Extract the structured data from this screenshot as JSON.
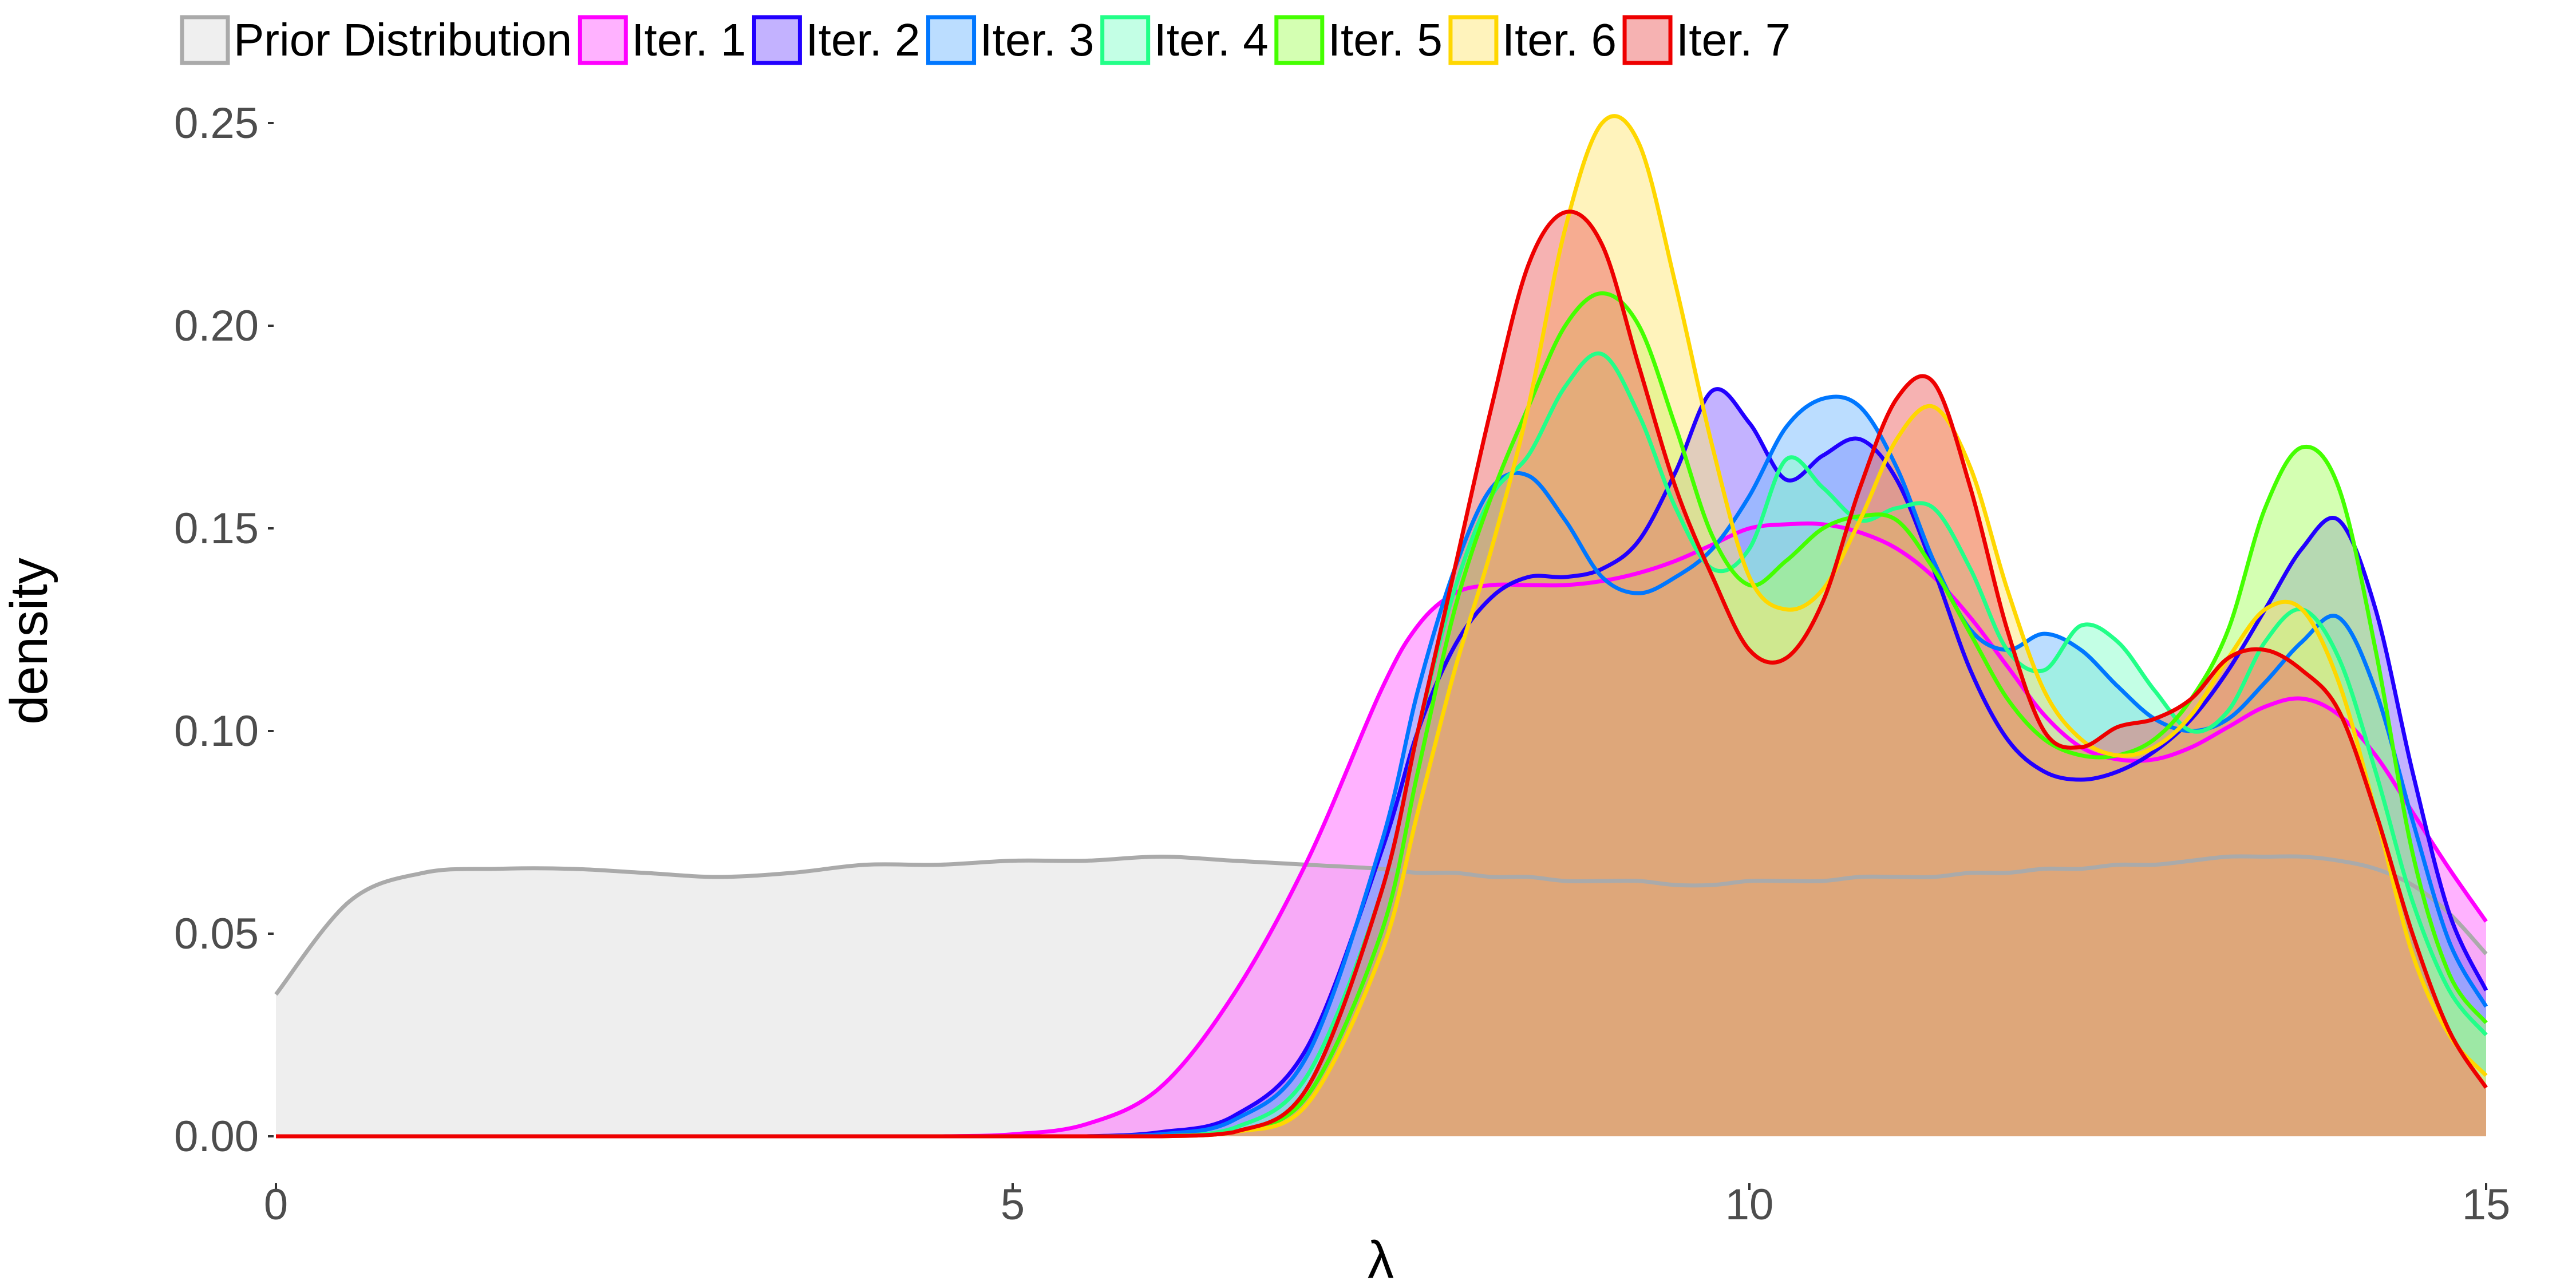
{
  "chart_data": {
    "type": "area",
    "title": "",
    "xlabel": "λ",
    "ylabel": "density",
    "xlim": [
      0,
      15
    ],
    "ylim": [
      0,
      0.25
    ],
    "x_ticks": [
      0,
      5,
      10,
      15
    ],
    "x_tick_labels": [
      "0",
      "5",
      "10",
      "15"
    ],
    "y_ticks": [
      0,
      0.05,
      0.1,
      0.15,
      0.2,
      0.25
    ],
    "y_tick_labels": [
      "0.00",
      "0.05",
      "0.10",
      "0.15",
      "0.20",
      "0.25"
    ],
    "grid": false,
    "legend_position": "top",
    "x": [
      0,
      0.5,
      1,
      1.5,
      2,
      2.5,
      3,
      3.5,
      4,
      4.5,
      5,
      5.5,
      6,
      6.5,
      7,
      7.5,
      7.75,
      8,
      8.25,
      8.5,
      8.75,
      9,
      9.25,
      9.5,
      9.75,
      10,
      10.25,
      10.5,
      10.75,
      11,
      11.25,
      11.5,
      11.75,
      12,
      12.25,
      12.5,
      12.75,
      13,
      13.25,
      13.5,
      13.75,
      14,
      14.25,
      14.5,
      14.75,
      15
    ],
    "series": [
      {
        "name": "Prior Distribution",
        "line_color": "#AAAAAA",
        "fill_color": "#E0E0E0",
        "values": [
          0.035,
          0.058,
          0.065,
          0.066,
          0.066,
          0.065,
          0.064,
          0.065,
          0.067,
          0.067,
          0.068,
          0.068,
          0.069,
          0.068,
          0.067,
          0.066,
          0.065,
          0.065,
          0.064,
          0.064,
          0.063,
          0.063,
          0.063,
          0.062,
          0.062,
          0.063,
          0.063,
          0.063,
          0.064,
          0.064,
          0.064,
          0.065,
          0.065,
          0.066,
          0.066,
          0.067,
          0.067,
          0.068,
          0.069,
          0.069,
          0.069,
          0.068,
          0.066,
          0.062,
          0.055,
          0.045
        ]
      },
      {
        "name": "Iter. 1",
        "line_color": "#FF00FF",
        "fill_color": "#FF66FF",
        "values": [
          0,
          0,
          0,
          0,
          0,
          0,
          0,
          0,
          0,
          0,
          0.0005,
          0.003,
          0.012,
          0.035,
          0.068,
          0.11,
          0.126,
          0.134,
          0.136,
          0.136,
          0.136,
          0.137,
          0.139,
          0.142,
          0.146,
          0.15,
          0.151,
          0.151,
          0.149,
          0.145,
          0.138,
          0.128,
          0.116,
          0.104,
          0.096,
          0.093,
          0.093,
          0.096,
          0.101,
          0.106,
          0.108,
          0.104,
          0.094,
          0.08,
          0.066,
          0.053
        ]
      },
      {
        "name": "Iter. 2",
        "line_color": "#2200FF",
        "fill_color": "#8866FF",
        "values": [
          0,
          0,
          0,
          0,
          0,
          0,
          0,
          0,
          0,
          0,
          0,
          0,
          0.001,
          0.005,
          0.022,
          0.07,
          0.1,
          0.121,
          0.133,
          0.138,
          0.138,
          0.14,
          0.147,
          0.164,
          0.184,
          0.176,
          0.162,
          0.168,
          0.172,
          0.162,
          0.14,
          0.115,
          0.098,
          0.09,
          0.088,
          0.09,
          0.095,
          0.103,
          0.115,
          0.13,
          0.145,
          0.152,
          0.13,
          0.09,
          0.055,
          0.036
        ]
      },
      {
        "name": "Iter. 3",
        "line_color": "#0077FF",
        "fill_color": "#77BBFF",
        "values": [
          0,
          0,
          0,
          0,
          0,
          0,
          0,
          0,
          0,
          0,
          0,
          0,
          0.0005,
          0.004,
          0.02,
          0.072,
          0.11,
          0.14,
          0.16,
          0.163,
          0.152,
          0.138,
          0.134,
          0.138,
          0.145,
          0.158,
          0.175,
          0.182,
          0.18,
          0.165,
          0.142,
          0.125,
          0.12,
          0.124,
          0.12,
          0.111,
          0.103,
          0.1,
          0.103,
          0.112,
          0.122,
          0.128,
          0.11,
          0.078,
          0.048,
          0.032
        ]
      },
      {
        "name": "Iter. 4",
        "line_color": "#22FF88",
        "fill_color": "#88FFCC",
        "values": [
          0,
          0,
          0,
          0,
          0,
          0,
          0,
          0,
          0,
          0,
          0,
          0,
          0,
          0.002,
          0.015,
          0.06,
          0.1,
          0.135,
          0.158,
          0.168,
          0.185,
          0.193,
          0.178,
          0.155,
          0.14,
          0.145,
          0.167,
          0.16,
          0.152,
          0.155,
          0.155,
          0.14,
          0.12,
          0.115,
          0.126,
          0.122,
          0.11,
          0.1,
          0.105,
          0.122,
          0.13,
          0.118,
          0.09,
          0.058,
          0.036,
          0.025
        ]
      },
      {
        "name": "Iter. 5",
        "line_color": "#44FF00",
        "fill_color": "#AAFF66",
        "values": [
          0,
          0,
          0,
          0,
          0,
          0,
          0,
          0,
          0,
          0,
          0,
          0,
          0,
          0.001,
          0.01,
          0.05,
          0.09,
          0.13,
          0.158,
          0.18,
          0.2,
          0.208,
          0.2,
          0.175,
          0.148,
          0.136,
          0.142,
          0.15,
          0.153,
          0.152,
          0.14,
          0.124,
          0.108,
          0.098,
          0.094,
          0.094,
          0.098,
          0.108,
          0.125,
          0.155,
          0.17,
          0.16,
          0.12,
          0.07,
          0.04,
          0.028
        ]
      },
      {
        "name": "Iter. 6",
        "line_color": "#FFD700",
        "fill_color": "#FFE77A",
        "values": [
          0,
          0,
          0,
          0,
          0,
          0,
          0,
          0,
          0,
          0,
          0,
          0,
          0,
          0.001,
          0.008,
          0.045,
          0.08,
          0.115,
          0.145,
          0.18,
          0.224,
          0.25,
          0.245,
          0.21,
          0.17,
          0.138,
          0.13,
          0.135,
          0.152,
          0.172,
          0.18,
          0.165,
          0.135,
          0.11,
          0.098,
          0.094,
          0.096,
          0.104,
          0.118,
          0.13,
          0.13,
          0.112,
          0.08,
          0.045,
          0.025,
          0.015
        ]
      },
      {
        "name": "Iter. 7",
        "line_color": "#EE0000",
        "fill_color": "#EE6666",
        "values": [
          0,
          0,
          0,
          0,
          0,
          0,
          0,
          0,
          0,
          0,
          0,
          0,
          0,
          0.001,
          0.012,
          0.06,
          0.1,
          0.14,
          0.18,
          0.215,
          0.228,
          0.22,
          0.19,
          0.16,
          0.138,
          0.12,
          0.118,
          0.132,
          0.16,
          0.182,
          0.186,
          0.16,
          0.125,
          0.1,
          0.096,
          0.101,
          0.103,
          0.108,
          0.118,
          0.12,
          0.115,
          0.105,
          0.08,
          0.05,
          0.026,
          0.012
        ]
      }
    ]
  }
}
